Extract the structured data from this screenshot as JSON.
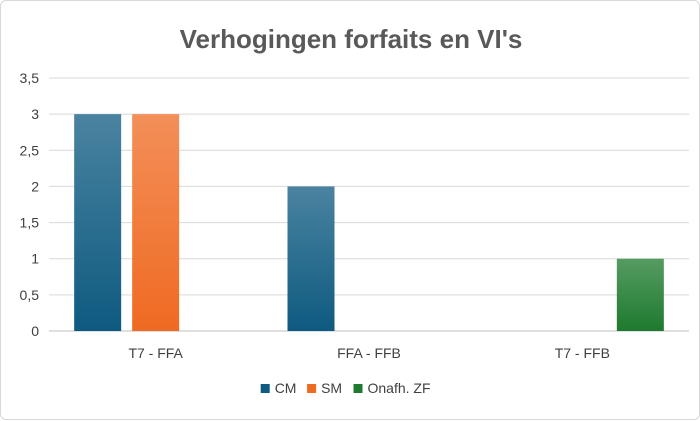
{
  "chart_data": {
    "type": "bar",
    "title": "Verhogingen forfaits en VI's",
    "categories": [
      "T7 - FFA",
      "FFA - FFB",
      "T7 - FFB"
    ],
    "series": [
      {
        "name": "CM",
        "values": [
          3,
          2,
          0
        ],
        "color": "#0e5a80"
      },
      {
        "name": "SM",
        "values": [
          3,
          0,
          0
        ],
        "color": "#ef6a22"
      },
      {
        "name": "Onafh. ZF",
        "values": [
          0,
          0,
          1
        ],
        "color": "#1e7a2e"
      }
    ],
    "ylim": [
      0,
      3.5
    ],
    "yticks": [
      "0",
      "0,5",
      "1",
      "1,5",
      "2",
      "2,5",
      "3",
      "3,5"
    ],
    "grid": true,
    "legend_position": "bottom"
  }
}
